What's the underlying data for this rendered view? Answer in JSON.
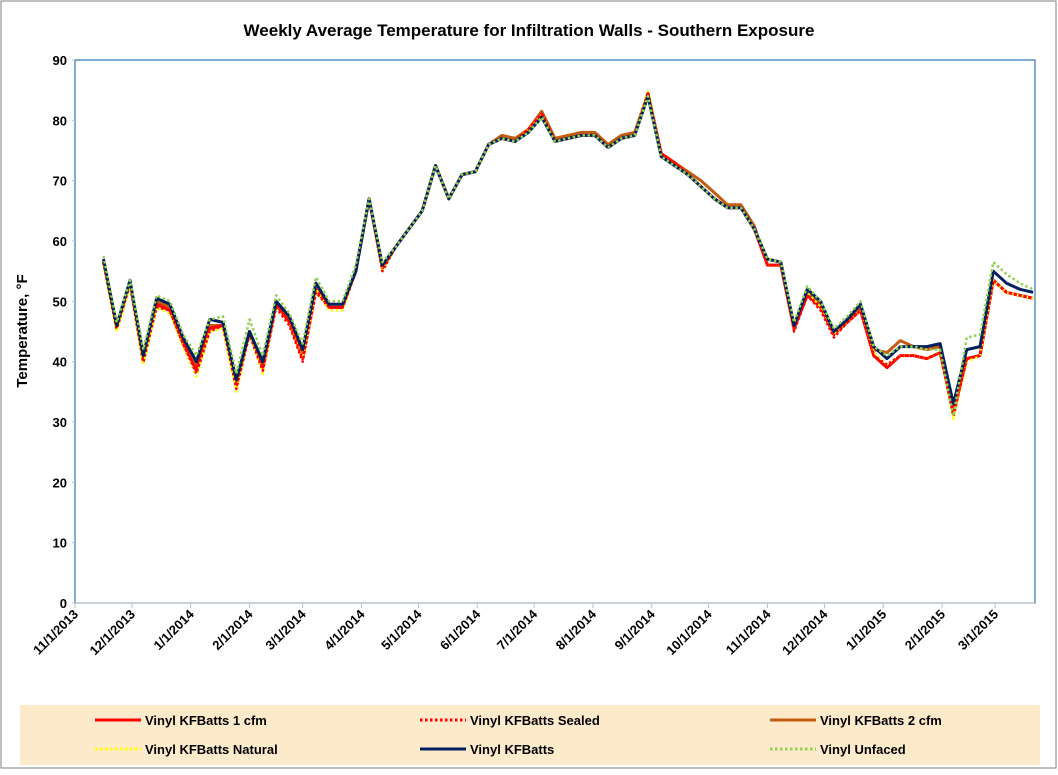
{
  "chart_data": {
    "type": "line",
    "title": "Weekly Average Temperature for Infiltration Walls - Southern Exposure",
    "y_label": "Temperature, °F",
    "x": [
      "11/16/2013",
      "11/23/2013",
      "11/30/2013",
      "12/7/2013",
      "12/14/2013",
      "12/21/2013",
      "12/28/2013",
      "1/4/2014",
      "1/11/2014",
      "1/18/2014",
      "1/25/2014",
      "2/1/2014",
      "2/8/2014",
      "2/15/2014",
      "2/22/2014",
      "3/1/2014",
      "3/8/2014",
      "3/15/2014",
      "3/22/2014",
      "3/29/2014",
      "4/5/2014",
      "4/12/2014",
      "4/19/2014",
      "4/26/2014",
      "5/3/2014",
      "5/10/2014",
      "5/17/2014",
      "5/24/2014",
      "5/31/2014",
      "6/7/2014",
      "6/14/2014",
      "6/21/2014",
      "6/28/2014",
      "7/5/2014",
      "7/12/2014",
      "7/19/2014",
      "7/26/2014",
      "8/2/2014",
      "8/9/2014",
      "8/16/2014",
      "8/23/2014",
      "8/30/2014",
      "9/6/2014",
      "9/13/2014",
      "9/20/2014",
      "9/27/2014",
      "10/4/2014",
      "10/11/2014",
      "10/18/2014",
      "10/25/2014",
      "11/1/2014",
      "11/8/2014",
      "11/15/2014",
      "11/22/2014",
      "11/29/2014",
      "12/6/2014",
      "12/13/2014",
      "12/20/2014",
      "12/27/2014",
      "1/3/2015",
      "1/10/2015",
      "1/17/2015",
      "1/24/2015",
      "1/31/2015",
      "2/7/2015",
      "2/14/2015",
      "2/21/2015",
      "2/28/2015",
      "3/7/2015",
      "3/14/2015",
      "3/21/2015"
    ],
    "series": [
      {
        "name": "Vinyl KFBatts 1 cfm",
        "color": "#ff0000",
        "dash": "solid",
        "values": [
          56.5,
          45.5,
          53,
          40,
          49.5,
          48.5,
          43,
          38.5,
          45.5,
          46,
          36,
          45,
          39,
          49.5,
          46.5,
          40.5,
          52,
          49,
          49,
          55,
          67,
          55.5,
          59,
          62,
          65,
          72.5,
          67,
          71,
          71.5,
          76,
          77,
          76.5,
          78.5,
          81,
          76.5,
          77,
          77.5,
          77.5,
          75.5,
          77,
          77.5,
          84.5,
          74.5,
          73,
          71,
          69,
          67,
          65.5,
          65.5,
          62,
          56,
          56,
          45.5,
          51,
          49,
          44.5,
          46.5,
          48.5,
          41,
          39,
          41,
          41,
          40.5,
          41.5,
          31.5,
          40.5,
          41,
          53.5,
          51.5,
          51,
          50.5
        ]
      },
      {
        "name": "Vinyl KFBatts Sealed",
        "color": "#ff0000",
        "dash": "dotted",
        "values": [
          56.5,
          45.5,
          53,
          40,
          49,
          48.5,
          43,
          38,
          45,
          46,
          35.5,
          44.5,
          38.5,
          49,
          46,
          40,
          51.5,
          49,
          49,
          55,
          67,
          55,
          59,
          62,
          65,
          72.5,
          67,
          71,
          71.5,
          76,
          77,
          76.5,
          78.5,
          81,
          76.5,
          77,
          77.5,
          77.5,
          75.5,
          77,
          77.5,
          84.5,
          74.5,
          73,
          71,
          69,
          67,
          65.5,
          65.5,
          62,
          56,
          56,
          45,
          51,
          48.5,
          44,
          46.5,
          48.5,
          41,
          39.5,
          41,
          41,
          40.5,
          41.5,
          31,
          40.5,
          41,
          53.5,
          51.5,
          51,
          50.5
        ]
      },
      {
        "name": "Vinyl KFBatts 2 cfm",
        "color": "#c55a11",
        "dash": "solid",
        "values": [
          56.5,
          45.5,
          53,
          41,
          50,
          49,
          43.5,
          39.5,
          46,
          46,
          36.5,
          45,
          39.5,
          50,
          47,
          41.5,
          52,
          49,
          49,
          55,
          67,
          55.5,
          59,
          62,
          65,
          72.5,
          67,
          71,
          71.5,
          76,
          77.5,
          77,
          78.5,
          81.5,
          77,
          77.5,
          78,
          78,
          76,
          77.5,
          78,
          84.5,
          74.5,
          73,
          71.5,
          70,
          68,
          66,
          66,
          62.5,
          56,
          56,
          45.5,
          51.5,
          49.5,
          44.5,
          47,
          49,
          42,
          41.5,
          43.5,
          42.5,
          42,
          42.5,
          32.5,
          40.5,
          41,
          53.5,
          51.5,
          51,
          50.5
        ]
      },
      {
        "name": "Vinyl KFBatts Natural",
        "color": "#ffff00",
        "dash": "dotted",
        "values": [
          56,
          45,
          52.5,
          39.5,
          49,
          48,
          42.5,
          37.5,
          45,
          45.5,
          35,
          44.5,
          38,
          49,
          46,
          40.5,
          52,
          48.5,
          48.5,
          55,
          67,
          55,
          59,
          62,
          65,
          72.5,
          67,
          71,
          71.5,
          76,
          77,
          76.5,
          78.5,
          81,
          76.5,
          77,
          77.5,
          77.5,
          75.5,
          77,
          77.5,
          85,
          74.5,
          73,
          71,
          69,
          67,
          65.5,
          65.5,
          62,
          56,
          56,
          45,
          51.5,
          49,
          44.5,
          46.5,
          48.5,
          41.5,
          39.5,
          41,
          41,
          40.5,
          41.5,
          30.5,
          40,
          41,
          53.5,
          51.5,
          51,
          50.5
        ]
      },
      {
        "name": "Vinyl KFBatts",
        "color": "#002060",
        "dash": "solid",
        "values": [
          57,
          46,
          53.5,
          41,
          50.5,
          49.5,
          44,
          40,
          47,
          46.5,
          37,
          45,
          40,
          50,
          47.5,
          42,
          53,
          49.5,
          49.5,
          55,
          67,
          56,
          59,
          62,
          65,
          72.5,
          67,
          71,
          71.5,
          76,
          77,
          76.5,
          78,
          80.5,
          76.5,
          77,
          77.5,
          77.5,
          75.5,
          77,
          77.5,
          84,
          74,
          72.5,
          71,
          69,
          67,
          65.5,
          65.5,
          62,
          57,
          56.5,
          46,
          52,
          50,
          45,
          47,
          49.5,
          42.5,
          40.5,
          42.5,
          42.5,
          42.5,
          43,
          33,
          42,
          42.5,
          55,
          53,
          52,
          51.5
        ]
      },
      {
        "name": "Vinyl Unfaced",
        "color": "#92d050",
        "dash": "dotted",
        "values": [
          57.5,
          46.5,
          53.5,
          42,
          51,
          50,
          44.5,
          41,
          47,
          47.5,
          38,
          47,
          41,
          51,
          48,
          43,
          54,
          50,
          50,
          56,
          67,
          56.5,
          59,
          62,
          65,
          72.5,
          67,
          71,
          71.5,
          76,
          77,
          76.5,
          78,
          80.5,
          76.5,
          77,
          77.5,
          77.5,
          75.5,
          77,
          77.5,
          84,
          74,
          72.5,
          71,
          69,
          67,
          65.5,
          65.5,
          62,
          57,
          56.5,
          46.5,
          52.5,
          50,
          45.5,
          47.5,
          50,
          42.5,
          41,
          42.5,
          42.5,
          42,
          42,
          31,
          44,
          44.5,
          56.5,
          54.5,
          53,
          52
        ]
      }
    ],
    "xlim": [
      "11/1/2013",
      "3/22/2015"
    ],
    "xticks": [
      "11/1/2013",
      "12/1/2013",
      "1/1/2014",
      "2/1/2014",
      "3/1/2014",
      "4/1/2014",
      "5/1/2014",
      "6/1/2014",
      "7/1/2014",
      "8/1/2014",
      "9/1/2014",
      "10/1/2014",
      "11/1/2014",
      "12/1/2014",
      "1/1/2015",
      "2/1/2015",
      "3/1/2015"
    ],
    "ylim": [
      0,
      90
    ],
    "yticks": [
      0,
      10,
      20,
      30,
      40,
      50,
      60,
      70,
      80,
      90
    ],
    "grid": false
  }
}
